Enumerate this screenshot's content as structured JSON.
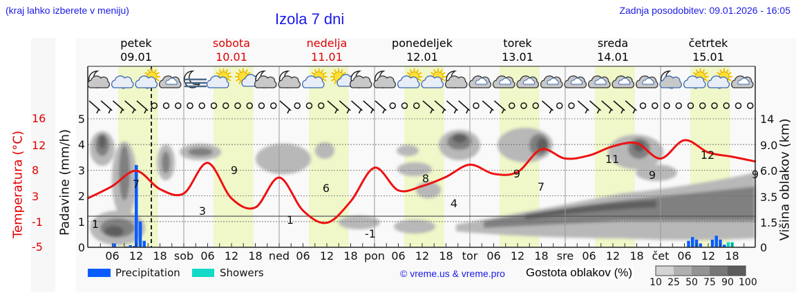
{
  "header": {
    "hint": "(kraj lahko izberete v meniju)",
    "title": "Izola 7 dni",
    "updated": "Zadnja posodobitev: 09.01.2026 - 16:05"
  },
  "days": [
    {
      "name": "petek",
      "date": "09.01",
      "weekend": false
    },
    {
      "name": "sobota",
      "date": "10.01",
      "weekend": true
    },
    {
      "name": "nedelja",
      "date": "11.01",
      "weekend": true
    },
    {
      "name": "ponedeljek",
      "date": "12.01",
      "weekend": false
    },
    {
      "name": "torek",
      "date": "13.01",
      "weekend": false
    },
    {
      "name": "sreda",
      "date": "14.01",
      "weekend": false
    },
    {
      "name": "četrtek",
      "date": "15.01",
      "weekend": false
    }
  ],
  "axes": {
    "temp_label": "Temperatura (°C)",
    "precip_label": "Padavine (mm/h)",
    "cloud_label": "Višina oblakov (km)",
    "temp_ticks": [
      "16",
      "12",
      "8",
      "3",
      "-1",
      "-5"
    ],
    "precip_ticks": [
      "5",
      "4",
      "3",
      "2",
      "1",
      "0"
    ],
    "cloud_ticks": [
      "14",
      "9.0",
      "6.0",
      "3.5",
      "1.5",
      "0"
    ],
    "x_ticks": [
      "06",
      "12",
      "18",
      "sob",
      "06",
      "12",
      "18",
      "ned",
      "06",
      "12",
      "18",
      "pon",
      "06",
      "12",
      "18",
      "tor",
      "06",
      "12",
      "18",
      "sre",
      "06",
      "12",
      "18",
      "čet",
      "06",
      "12",
      "18"
    ]
  },
  "legend": {
    "precipitation": "Precipitation",
    "showers": "Showers",
    "copyright": "© vreme.us & vreme.pro",
    "cloud_density": "Gostota oblakov (%)",
    "density_steps": [
      "10",
      "25",
      "50",
      "75",
      "90",
      "100"
    ]
  },
  "colors": {
    "precipitation": "#0a5cff",
    "showers": "#12d9c8",
    "temperature": "#ee1111",
    "daylight": "#f0f7c8",
    "weekend_text": "#e00000",
    "title_blue": "#1a1ae6"
  },
  "chart_data": {
    "type": "line",
    "title": "Izola 7 dni",
    "xlabel": "",
    "ylabel": "Temperatura (°C) / Padavine (mm/h)",
    "ylabel_right": "Višina oblakov (km)",
    "ylim_precip": [
      0,
      5
    ],
    "ylim_temp": [
      -5,
      16
    ],
    "grid": true,
    "legend_position": "bottom",
    "series": [
      {
        "name": "Temperatura",
        "unit": "°C",
        "x_hours": [
          0,
          6,
          12,
          18,
          24,
          30,
          36,
          42,
          48,
          54,
          60,
          66,
          72,
          78,
          84,
          90,
          96,
          102,
          108,
          114,
          120,
          126,
          132,
          138,
          144,
          150,
          156,
          162,
          168
        ],
        "values": [
          3,
          5,
          7.5,
          4.5,
          3.8,
          8.8,
          3,
          1.5,
          6.4,
          1,
          -1,
          2.5,
          8,
          4.3,
          5,
          6.5,
          8.5,
          7,
          7.3,
          11,
          9.5,
          10,
          11.5,
          12,
          9.5,
          12.5,
          10.5,
          9.8,
          9
        ]
      },
      {
        "name": "Precipitation",
        "unit": "mm/h",
        "x_hours": [
          6.5,
          9.5,
          10.5,
          11.5,
          12,
          13,
          14,
          15,
          151,
          152,
          153,
          154,
          157,
          158,
          159,
          160
        ],
        "values": [
          0.15,
          0.03,
          0.08,
          0.05,
          3.2,
          1.0,
          0.25,
          0.0,
          0.25,
          0.4,
          0.3,
          0.15,
          0.3,
          0.45,
          0.3,
          0.1
        ]
      },
      {
        "name": "Showers",
        "unit": "mm/h",
        "x_hours": [
          161,
          162
        ],
        "values": [
          0.2,
          0.2
        ]
      }
    ],
    "temp_annotations": [
      {
        "day": "petek",
        "value": 1
      },
      {
        "day": "petek",
        "value": 7
      },
      {
        "day": "sobota",
        "value": 3
      },
      {
        "day": "sobota",
        "value": 9
      },
      {
        "day": "nedelja",
        "value": 1
      },
      {
        "day": "nedelja",
        "value": 6
      },
      {
        "day": "ponedeljek",
        "value": -1
      },
      {
        "day": "ponedeljek",
        "value": 8
      },
      {
        "day": "ponedeljek",
        "value": 4
      },
      {
        "day": "torek",
        "value": 9
      },
      {
        "day": "torek",
        "value": 7
      },
      {
        "day": "sreda",
        "value": 11
      },
      {
        "day": "sreda",
        "value": 9
      },
      {
        "day": "četrtek",
        "value": 12
      },
      {
        "day": "četrtek",
        "value": 9
      }
    ],
    "weather_icons": [
      "moon-cloud",
      "cloud-rain",
      "sun-cloud-rain",
      "cloud",
      "moon-fog",
      "sun-cloud",
      "sun-small-cloud",
      "moon-cloud",
      "moon-cloud",
      "sun-cloud",
      "sun-small-cloud",
      "moon-cloud",
      "moon-cloud",
      "sun-cloud",
      "sun-cloud",
      "moon-cloud",
      "cloud",
      "cloud",
      "cloud",
      "cloud",
      "cloud",
      "cloud",
      "cloud",
      "cloud",
      "moon-cloud-rain",
      "sun-cloud-rain",
      "sun-cloud-rain",
      "cloud"
    ]
  }
}
